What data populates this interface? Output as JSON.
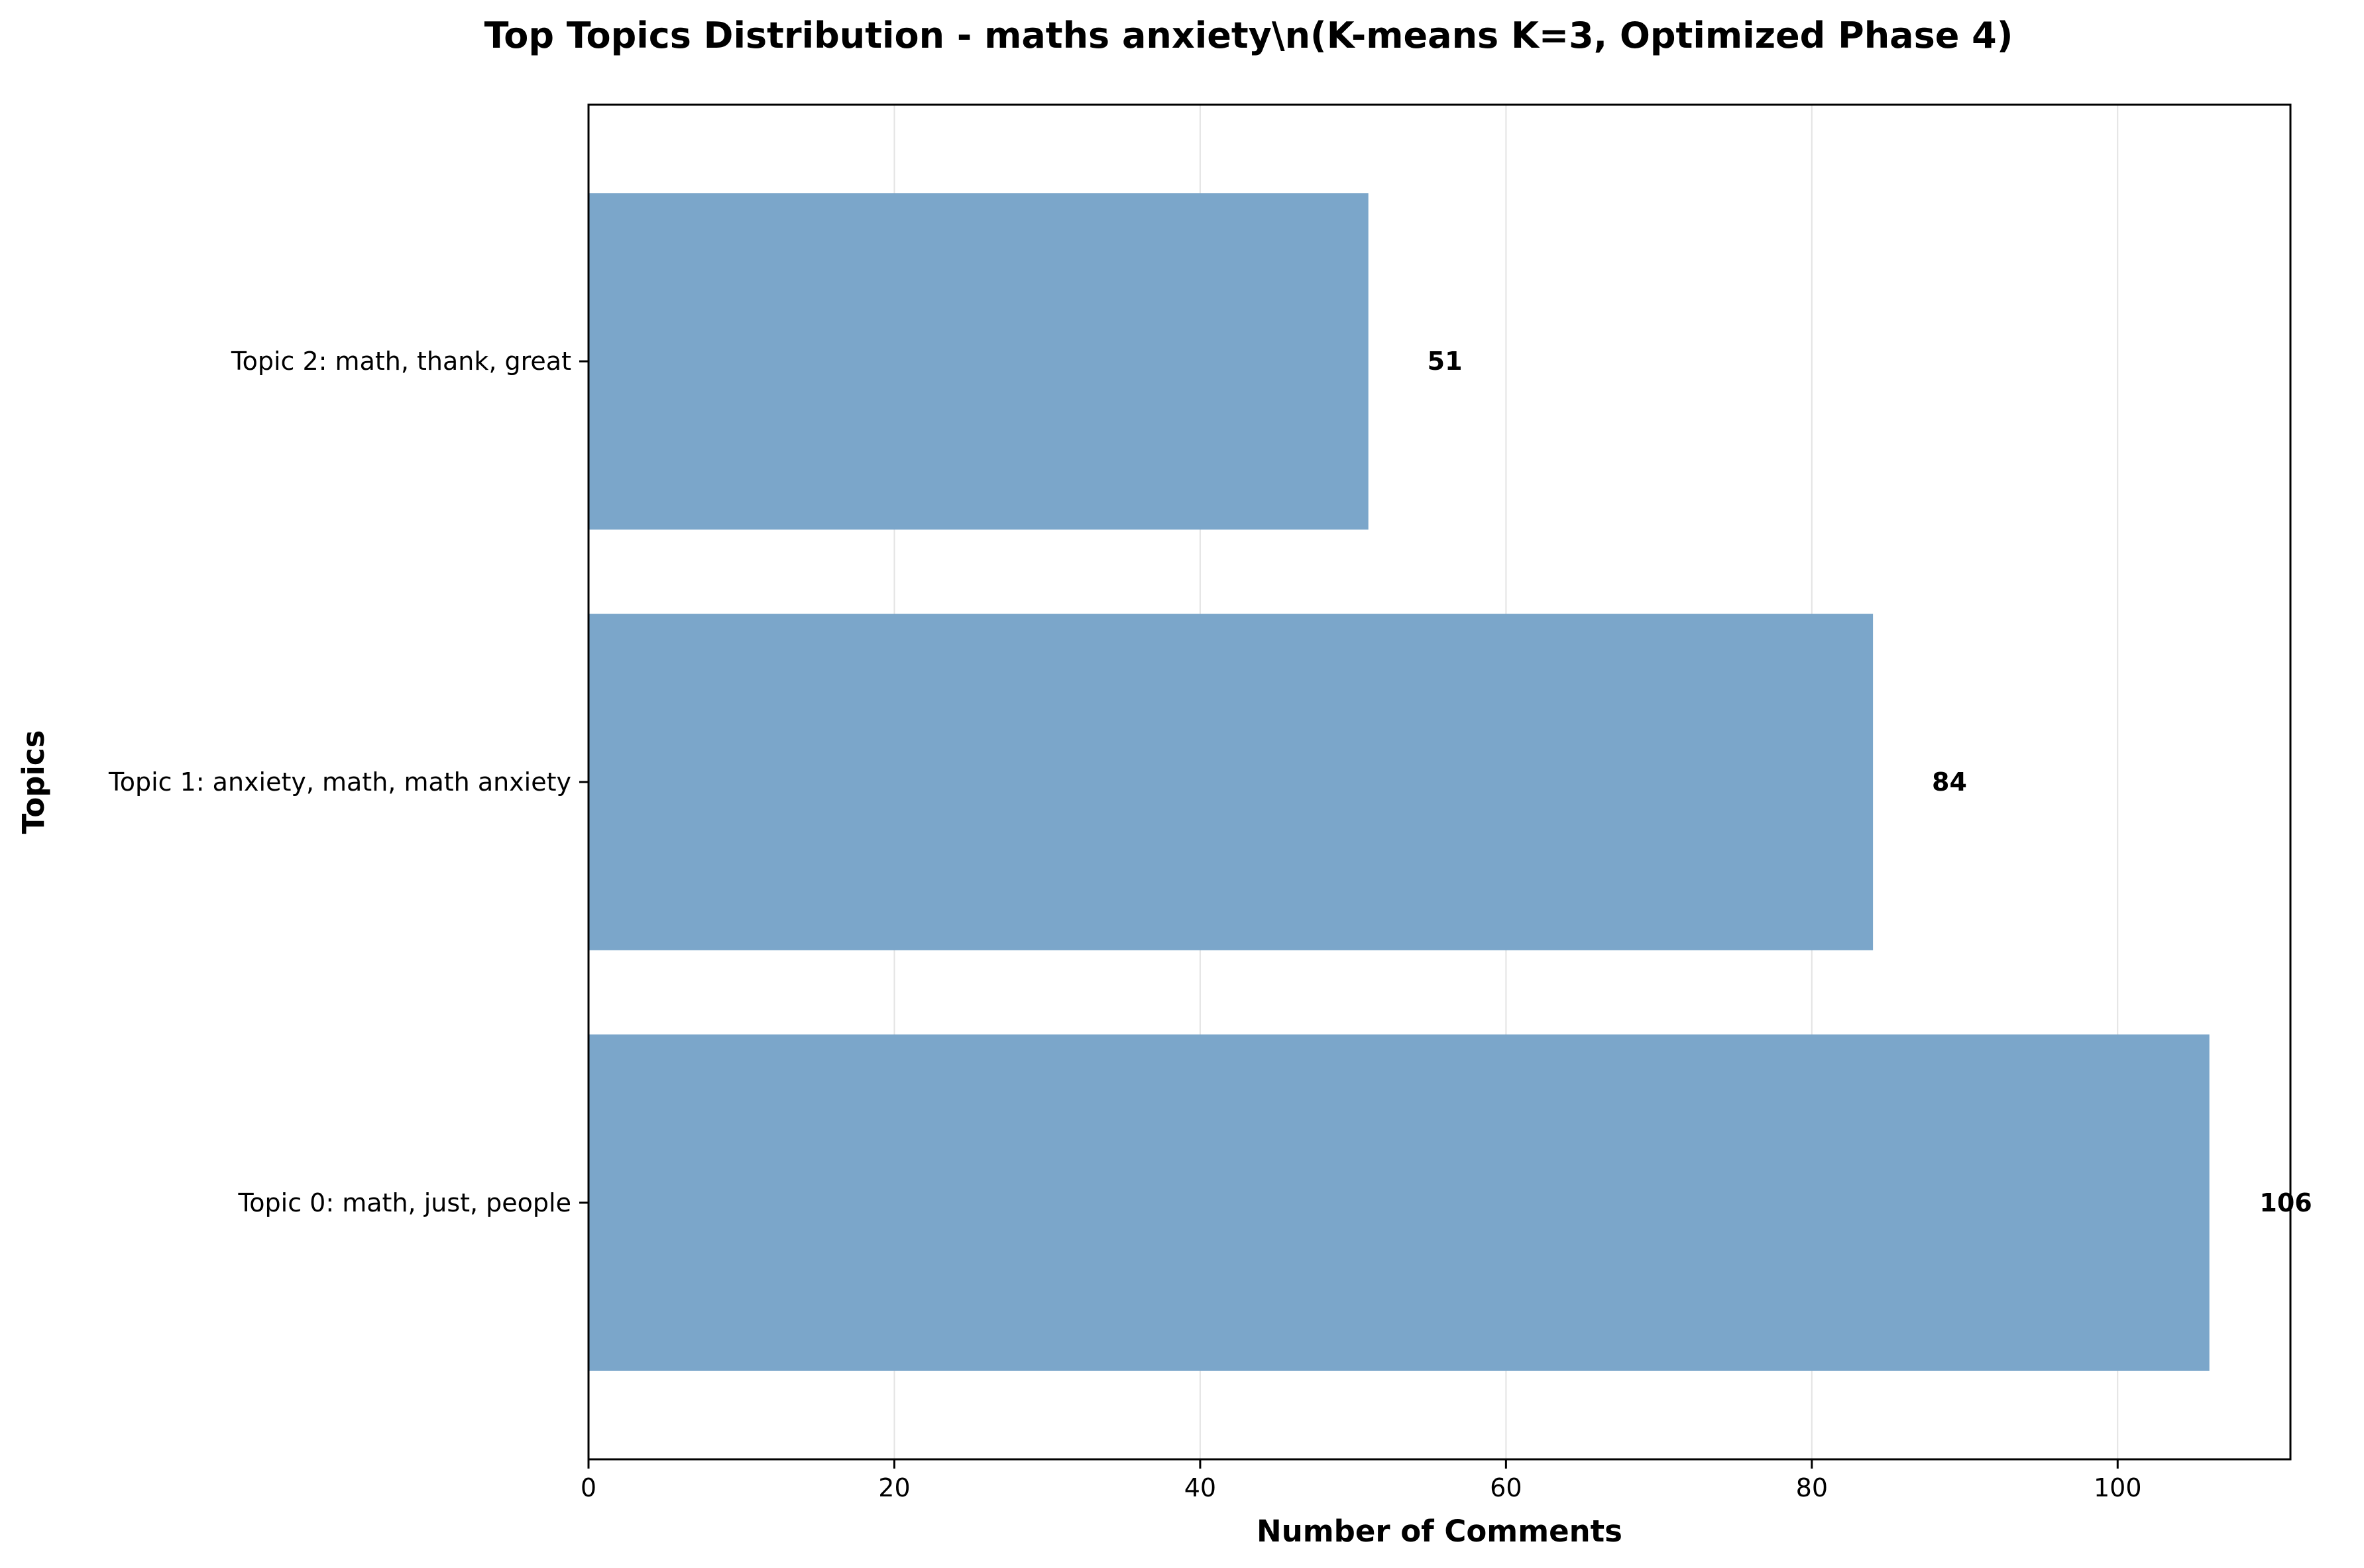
{
  "chart_data": {
    "type": "bar",
    "orientation": "horizontal",
    "title": "Top Topics Distribution - maths anxiety\\n(K-means K=3, Optimized Phase 4)",
    "xlabel": "Number of Comments",
    "ylabel": "Topics",
    "categories": [
      "Topic 0: math, just, people",
      "Topic 1: anxiety, math, math anxiety",
      "Topic 2: math, thank, great"
    ],
    "values": [
      106,
      84,
      51
    ],
    "xlim": [
      0,
      111.3
    ],
    "xticks": [
      0,
      20,
      40,
      60,
      80,
      100
    ],
    "grid": "vertical",
    "legend": "none",
    "bar_color": "#7ba6ca",
    "grid_color": "#e3e3e3"
  }
}
